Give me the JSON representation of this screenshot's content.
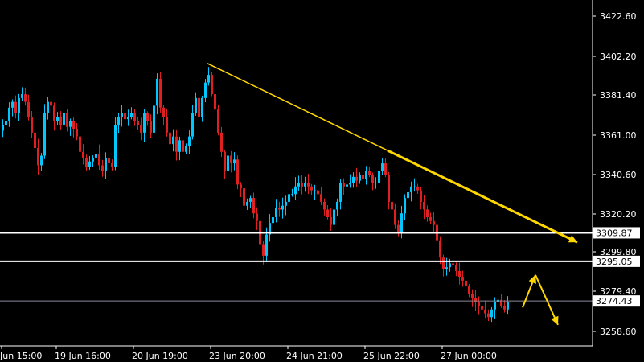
{
  "chart_data": {
    "type": "candlestick",
    "title": "",
    "ylim": [
      3247.6,
      3433.0
    ],
    "y_ticks": [
      "3422.60",
      "3402.20",
      "3381.40",
      "3361.00",
      "3340.60",
      "3320.20",
      "3299.80",
      "3279.40",
      "3258.60"
    ],
    "x_ticks": [
      "Jun 15:00",
      "19 Jun 16:00",
      "20 Jun 19:00",
      "23 Jun 20:00",
      "24 Jun 21:00",
      "25 Jun 22:00",
      "27 Jun 00:00"
    ],
    "horizontal_levels": [
      {
        "value": 3309.87,
        "label": "3309.87",
        "style": "white-thick"
      },
      {
        "value": 3295.05,
        "label": "3295.05",
        "style": "white-thick"
      },
      {
        "value": 3274.43,
        "label": "3274.43",
        "style": "current-price"
      }
    ],
    "trendline": {
      "from": {
        "bar": 64,
        "price": 3398
      },
      "to": {
        "bar": 179,
        "price": 3305
      }
    },
    "projection_arrows": [
      {
        "from": {
          "bar": 162,
          "price": 3271
        },
        "to": {
          "bar": 166,
          "price": 3288
        }
      },
      {
        "from": {
          "bar": 166,
          "price": 3288
        },
        "to": {
          "bar": 173,
          "price": 3262
        }
      }
    ],
    "grid": false,
    "colors": {
      "bull": "#00c8ff",
      "bear": "#e02020",
      "trend": "#ffd700",
      "level": "#ffffff",
      "axis": "#ffffff",
      "background": "#000000"
    },
    "close": [
      3366,
      3368,
      3375,
      3378,
      3372,
      3380,
      3382,
      3378,
      3370,
      3362,
      3354,
      3345,
      3350,
      3372,
      3378,
      3376,
      3368,
      3370,
      3366,
      3372,
      3365,
      3368,
      3364,
      3360,
      3352,
      3349,
      3344,
      3347,
      3349,
      3351,
      3345,
      3342,
      3349,
      3346,
      3344,
      3366,
      3370,
      3372,
      3369,
      3370,
      3372,
      3368,
      3366,
      3362,
      3372,
      3368,
      3362,
      3376,
      3390,
      3375,
      3370,
      3362,
      3356,
      3360,
      3352,
      3358,
      3352,
      3355,
      3360,
      3372,
      3380,
      3370,
      3380,
      3388,
      3392,
      3382,
      3374,
      3362,
      3352,
      3342,
      3350,
      3346,
      3348,
      3335,
      3333,
      3324,
      3326,
      3328,
      3320,
      3316,
      3304,
      3298,
      3309,
      3315,
      3318,
      3323,
      3322,
      3324,
      3326,
      3330,
      3330,
      3334,
      3336,
      3334,
      3336,
      3334,
      3332,
      3332,
      3330,
      3326,
      3322,
      3318,
      3314,
      3322,
      3326,
      3336,
      3334,
      3335,
      3336,
      3339,
      3337,
      3340,
      3338,
      3342,
      3340,
      3336,
      3336,
      3342,
      3346,
      3340,
      3326,
      3322,
      3314,
      3310,
      3320,
      3328,
      3331,
      3334,
      3334,
      3332,
      3326,
      3322,
      3318,
      3316,
      3314,
      3306,
      3297,
      3291,
      3292,
      3294,
      3293,
      3290,
      3287,
      3285,
      3282,
      3278,
      3276,
      3274,
      3272,
      3270,
      3268,
      3266,
      3270,
      3274,
      3275,
      3272,
      3270,
      3274
    ],
    "max_price_label": "3422.60"
  },
  "axis": {
    "price_labels": [
      "3422.60",
      "3402.20",
      "3381.40",
      "3361.00",
      "3340.60",
      "3320.20",
      "3299.80",
      "3279.40",
      "3258.60"
    ],
    "time_labels": [
      "Jun 15:00",
      "19 Jun 16:00",
      "20 Jun 19:00",
      "23 Jun 20:00",
      "24 Jun 21:00",
      "25 Jun 22:00",
      "27 Jun 00:00"
    ]
  }
}
